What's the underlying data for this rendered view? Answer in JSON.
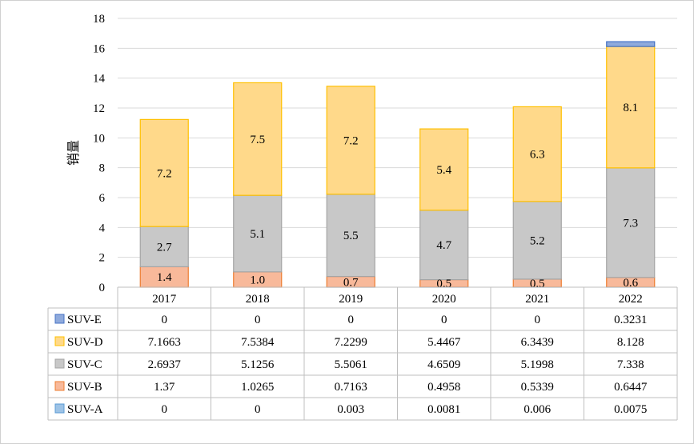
{
  "chart_data": {
    "type": "bar",
    "stacked": true,
    "title": "",
    "xlabel": "",
    "ylabel": "销量",
    "ylim": [
      0,
      18
    ],
    "yticks": [
      0,
      2,
      4,
      6,
      8,
      10,
      12,
      14,
      16,
      18
    ],
    "grid": true,
    "legend": "data-table",
    "categories": [
      "2017",
      "2018",
      "2019",
      "2020",
      "2021",
      "2022"
    ],
    "series": [
      {
        "name": "SUV-A",
        "values": [
          0,
          0,
          0.003,
          0.0081,
          0.006,
          0.0075
        ],
        "table_values": [
          "0",
          "0",
          "0.003",
          "0.0081",
          "0.006",
          "0.0075"
        ],
        "labels": [
          "",
          "",
          "",
          "",
          "",
          ""
        ],
        "color": "#9dc3e6",
        "stroke": "#5b9bd5"
      },
      {
        "name": "SUV-B",
        "values": [
          1.37,
          1.0265,
          0.7163,
          0.4958,
          0.5339,
          0.6447
        ],
        "table_values": [
          "1.37",
          "1.0265",
          "0.7163",
          "0.4958",
          "0.5339",
          "0.6447"
        ],
        "labels": [
          "1.4",
          "1.0",
          "0.7",
          "0.5",
          "0.5",
          "0.6"
        ],
        "color": "#f8b99a",
        "stroke": "#ed7d31"
      },
      {
        "name": "SUV-C",
        "values": [
          2.6937,
          5.1256,
          5.5061,
          4.6509,
          5.1998,
          7.338
        ],
        "table_values": [
          "2.6937",
          "5.1256",
          "5.5061",
          "4.6509",
          "5.1998",
          "7.338"
        ],
        "labels": [
          "2.7",
          "5.1",
          "5.5",
          "4.7",
          "5.2",
          "7.3"
        ],
        "color": "#c8c8c8",
        "stroke": "#a5a5a5"
      },
      {
        "name": "SUV-D",
        "values": [
          7.1663,
          7.5384,
          7.2299,
          5.4467,
          6.3439,
          8.128
        ],
        "table_values": [
          "7.1663",
          "7.5384",
          "7.2299",
          "5.4467",
          "6.3439",
          "8.128"
        ],
        "labels": [
          "7.2",
          "7.5",
          "7.2",
          "5.4",
          "6.3",
          "8.1"
        ],
        "color": "#ffd98a",
        "stroke": "#ffc000"
      },
      {
        "name": "SUV-E",
        "values": [
          0,
          0,
          0,
          0,
          0,
          0.3231
        ],
        "table_values": [
          "0",
          "0",
          "0",
          "0",
          "0",
          "0.3231"
        ],
        "labels": [
          "",
          "",
          "",
          "",
          "",
          ""
        ],
        "color": "#8faadc",
        "stroke": "#4472c4"
      }
    ],
    "table_order": [
      "SUV-E",
      "SUV-D",
      "SUV-C",
      "SUV-B",
      "SUV-A"
    ]
  }
}
